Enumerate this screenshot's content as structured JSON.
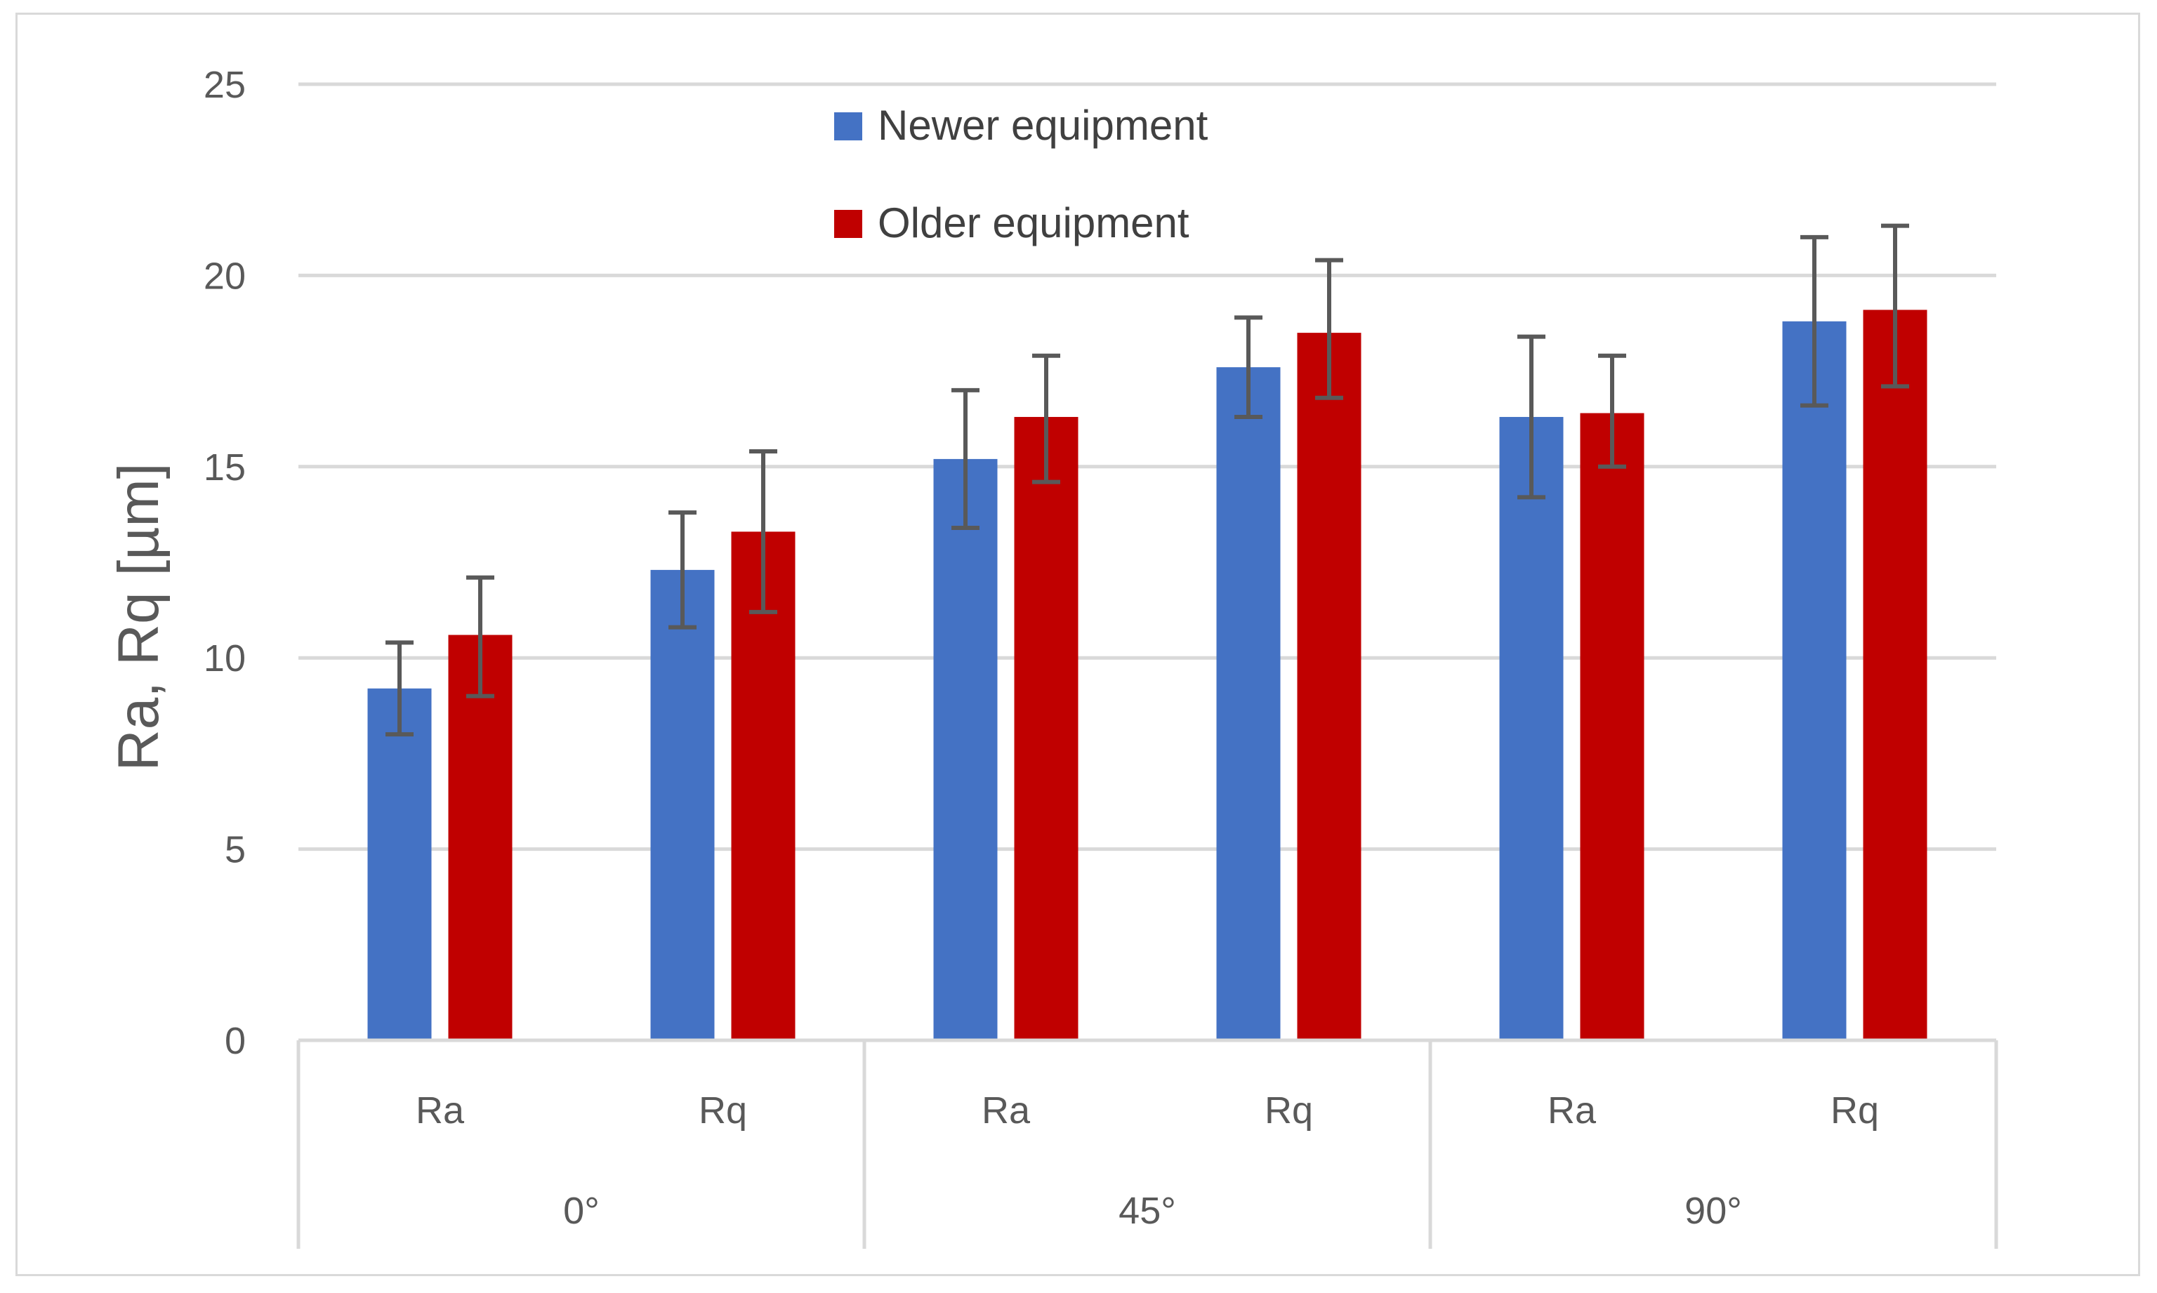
{
  "chart_data": {
    "type": "bar",
    "ylabel": "Ra, Rq [µm]",
    "ylim": [
      0,
      25
    ],
    "yticks": [
      0,
      5,
      10,
      15,
      20,
      25
    ],
    "grid": true,
    "legend_position": "top-center",
    "categories": [
      {
        "label": "Ra",
        "group": "0°"
      },
      {
        "label": "Rq",
        "group": "0°"
      },
      {
        "label": "Ra",
        "group": "45°"
      },
      {
        "label": "Rq",
        "group": "45°"
      },
      {
        "label": "Ra",
        "group": "90°"
      },
      {
        "label": "Rq",
        "group": "90°"
      }
    ],
    "groups": [
      "0°",
      "45°",
      "90°"
    ],
    "series": [
      {
        "name": "Newer equipment",
        "color": "#4472c4",
        "values": [
          9.2,
          12.3,
          15.2,
          17.6,
          16.3,
          18.8
        ],
        "error_low": [
          8.0,
          10.8,
          13.4,
          16.3,
          14.2,
          16.6
        ],
        "error_high": [
          10.4,
          13.8,
          17.0,
          18.9,
          18.4,
          21.0
        ]
      },
      {
        "name": "Older equipment",
        "color": "#c00000",
        "values": [
          10.6,
          13.3,
          16.3,
          18.5,
          16.4,
          19.1
        ],
        "error_low": [
          9.0,
          11.2,
          14.6,
          16.8,
          15.0,
          17.1
        ],
        "error_high": [
          12.1,
          15.4,
          17.9,
          20.4,
          17.9,
          21.3
        ]
      }
    ]
  }
}
